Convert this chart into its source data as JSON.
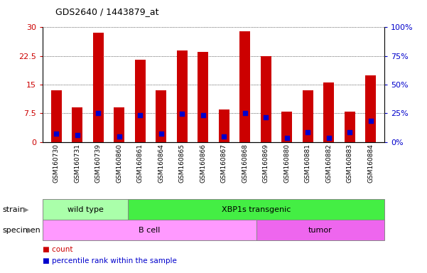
{
  "title": "GDS2640 / 1443879_at",
  "samples": [
    "GSM160730",
    "GSM160731",
    "GSM160739",
    "GSM160860",
    "GSM160861",
    "GSM160864",
    "GSM160865",
    "GSM160866",
    "GSM160867",
    "GSM160868",
    "GSM160869",
    "GSM160880",
    "GSM160881",
    "GSM160882",
    "GSM160883",
    "GSM160884"
  ],
  "count_values": [
    13.5,
    9.0,
    28.5,
    9.0,
    21.5,
    13.5,
    24.0,
    23.5,
    8.5,
    29.0,
    22.5,
    8.0,
    13.5,
    15.5,
    8.0,
    17.5
  ],
  "percentile_values": [
    2.2,
    1.8,
    7.5,
    1.5,
    7.0,
    2.2,
    7.3,
    7.0,
    1.5,
    7.5,
    6.5,
    1.0,
    2.5,
    1.0,
    2.5,
    5.5
  ],
  "bar_color": "#cc0000",
  "dot_color": "#0000cc",
  "ylim_left": [
    0,
    30
  ],
  "ylim_right": [
    0,
    100
  ],
  "yticks_left": [
    0,
    7.5,
    15,
    22.5,
    30
  ],
  "yticks_right": [
    0,
    25,
    50,
    75,
    100
  ],
  "ytick_labels_left": [
    "0",
    "7.5",
    "15",
    "22.5",
    "30"
  ],
  "ytick_labels_right": [
    "0%",
    "25%",
    "50%",
    "75%",
    "100%"
  ],
  "left_tick_color": "#cc0000",
  "right_tick_color": "#0000cc",
  "strain_groups": [
    {
      "label": "wild type",
      "start": 0,
      "end": 4,
      "color": "#aaffaa"
    },
    {
      "label": "XBP1s transgenic",
      "start": 4,
      "end": 16,
      "color": "#44ee44"
    }
  ],
  "specimen_groups": [
    {
      "label": "B cell",
      "start": 0,
      "end": 10,
      "color": "#ff99ff"
    },
    {
      "label": "tumor",
      "start": 10,
      "end": 16,
      "color": "#ee66ee"
    }
  ],
  "strain_label": "strain",
  "specimen_label": "specimen",
  "legend_count_label": "count",
  "legend_percentile_label": "percentile rank within the sample",
  "bar_width": 0.5,
  "grid_linestyle": "dotted",
  "background_color": "#ffffff"
}
